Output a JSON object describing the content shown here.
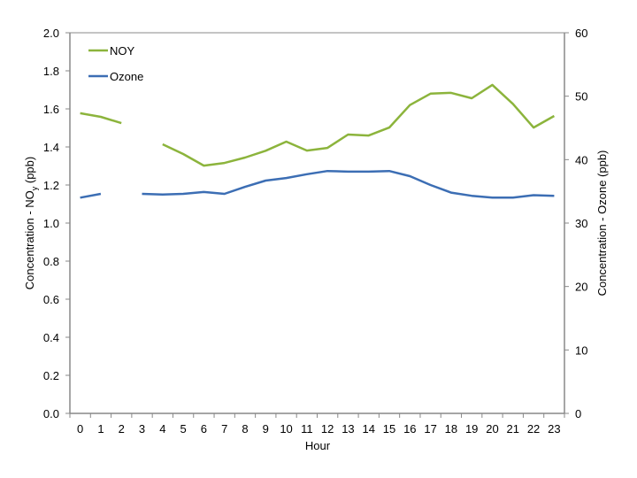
{
  "chart_data": {
    "type": "line",
    "title": "",
    "xlabel": "Hour",
    "ylabel": "Concentration - NOy (ppb)",
    "ylabel_parts": {
      "main": "Concentration - NO",
      "sub": "y",
      "tail": " (ppb)"
    },
    "y2label": "Concentration - Ozone (ppb)",
    "categories": [
      0,
      1,
      2,
      3,
      4,
      5,
      6,
      7,
      8,
      9,
      10,
      11,
      12,
      13,
      14,
      15,
      16,
      17,
      18,
      19,
      20,
      21,
      22,
      23
    ],
    "ylim": [
      0,
      2.0
    ],
    "y2lim": [
      0,
      60
    ],
    "yticks": [
      "0.0",
      "0.2",
      "0.4",
      "0.6",
      "0.8",
      "1.0",
      "1.2",
      "1.4",
      "1.6",
      "1.8",
      "2.0"
    ],
    "y2ticks": [
      "0",
      "10",
      "20",
      "30",
      "40",
      "50",
      "60"
    ],
    "grid": false,
    "legend_position": "upper-left-inside",
    "series": [
      {
        "name": "NOY",
        "axis": "left",
        "color": "#8cb43c",
        "values": [
          1.577,
          1.558,
          1.525,
          null,
          1.414,
          1.363,
          1.302,
          1.316,
          1.344,
          1.38,
          1.428,
          1.381,
          1.395,
          1.465,
          1.46,
          1.502,
          1.62,
          1.68,
          1.684,
          1.656,
          1.726,
          1.626,
          1.502,
          1.563
        ]
      },
      {
        "name": "Ozone",
        "axis": "right",
        "color": "#3c6eb4",
        "values": [
          34.0,
          34.6,
          null,
          34.6,
          34.5,
          34.6,
          34.9,
          34.6,
          35.7,
          36.7,
          37.1,
          37.7,
          38.2,
          38.1,
          38.1,
          38.2,
          37.4,
          36.0,
          34.8,
          34.3,
          34.0,
          34.0,
          34.4,
          34.3
        ]
      }
    ]
  }
}
